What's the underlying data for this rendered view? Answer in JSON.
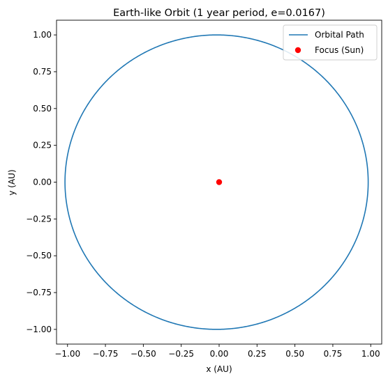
{
  "chart_data": {
    "type": "line",
    "title": "Earth-like Orbit (1 year period, e=0.0167)",
    "xlabel": "x (AU)",
    "ylabel": "y (AU)",
    "xlim": [
      -1.0725,
      1.0725
    ],
    "ylim": [
      -1.0999,
      1.0999
    ],
    "x_ticks": [
      -1.0,
      -0.75,
      -0.5,
      -0.25,
      0.0,
      0.25,
      0.5,
      0.75,
      1.0
    ],
    "x_tick_labels": [
      "−1.00",
      "−0.75",
      "−0.50",
      "−0.25",
      "0.00",
      "0.25",
      "0.50",
      "0.75",
      "1.00"
    ],
    "y_ticks": [
      1.0,
      0.75,
      0.5,
      0.25,
      0.0,
      -0.25,
      -0.5,
      -0.75,
      -1.0
    ],
    "y_tick_labels": [
      "1.00",
      "0.75",
      "0.50",
      "0.25",
      "0.00",
      "−0.25",
      "−0.50",
      "−0.75",
      "−1.00"
    ],
    "grid": false,
    "legend_position": "top-right",
    "series": [
      {
        "name": "Orbital Path",
        "kind": "ellipse",
        "semi_major_axis": 1.0,
        "eccentricity": 0.0167,
        "color": "#1f77b4"
      },
      {
        "name": "Focus (Sun)",
        "kind": "point",
        "x": 0.0,
        "y": 0.0,
        "color": "#ff0000"
      }
    ]
  }
}
